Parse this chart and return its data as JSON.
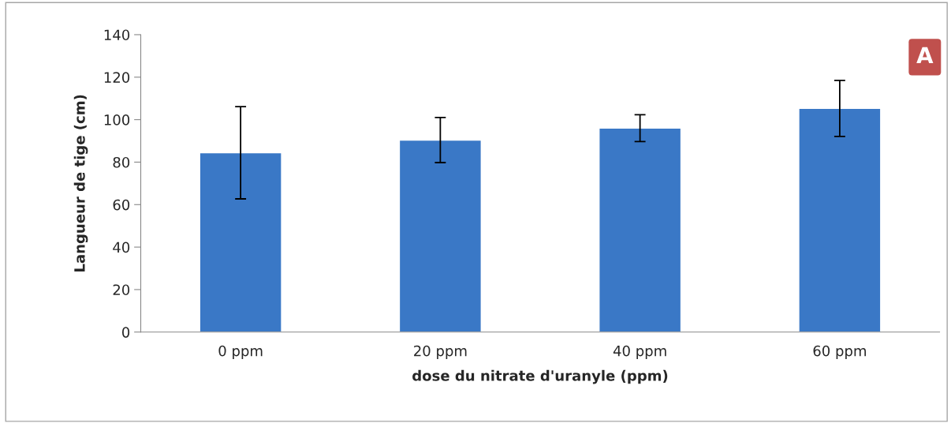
{
  "chart_data": {
    "type": "bar",
    "categories": [
      "0 ppm",
      "20 ppm",
      "40 ppm",
      "60 ppm"
    ],
    "values": [
      84.4,
      90.4,
      96.0,
      105.3
    ],
    "errors": [
      21.7,
      10.6,
      6.3,
      13.2
    ],
    "color": "#3a78c6",
    "xlabel": "dose du nitrate d'uranyle (ppm)",
    "ylabel": "Langueur de tige (cm)",
    "ylim": [
      0,
      140
    ],
    "yticks": [
      0,
      20,
      40,
      60,
      80,
      100,
      120,
      140
    ],
    "grid": false,
    "annotations": [
      "A"
    ]
  }
}
